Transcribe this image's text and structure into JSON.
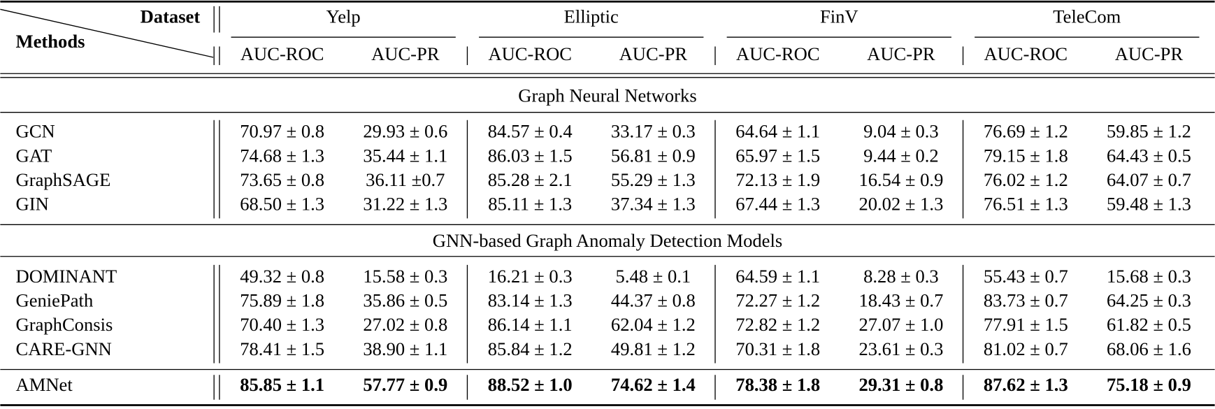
{
  "header": {
    "corner_dataset": "Dataset",
    "corner_methods": "Methods",
    "datasets": [
      "Yelp",
      "Elliptic",
      "FinV",
      "TeleCom"
    ],
    "metrics": [
      "AUC-ROC",
      "AUC-PR",
      "AUC-ROC",
      "AUC-PR",
      "AUC-ROC",
      "AUC-PR",
      "AUC-ROC",
      "AUC-PR"
    ]
  },
  "sections": [
    {
      "title": "Graph Neural Networks",
      "rows": [
        {
          "method": "GCN",
          "cells": [
            "70.97 ± 0.8",
            "29.93 ± 0.6",
            "84.57 ± 0.4",
            "33.17 ± 0.3",
            "64.64 ± 1.1",
            "9.04 ± 0.3",
            "76.69 ± 1.2",
            "59.85 ± 1.2"
          ]
        },
        {
          "method": "GAT",
          "cells": [
            "74.68 ± 1.3",
            "35.44 ± 1.1",
            "86.03 ± 1.5",
            "56.81 ± 0.9",
            "65.97 ± 1.5",
            "9.44 ± 0.2",
            "79.15 ± 1.8",
            "64.43 ± 0.5"
          ]
        },
        {
          "method": "GraphSAGE",
          "cells": [
            "73.65 ± 0.8",
            "36.11 ±0.7",
            "85.28 ± 2.1",
            "55.29 ± 1.3",
            "72.13 ± 1.9",
            "16.54 ± 0.9",
            "76.02 ± 1.2",
            "64.07 ± 0.7"
          ]
        },
        {
          "method": "GIN",
          "cells": [
            "68.50 ± 1.3",
            "31.22 ± 1.3",
            "85.11 ± 1.3",
            "37.34 ± 1.3",
            "67.44 ± 1.3",
            "20.02 ± 1.3",
            "76.51 ± 1.3",
            "59.48 ± 1.3"
          ]
        }
      ]
    },
    {
      "title": "GNN-based Graph Anomaly Detection Models",
      "rows": [
        {
          "method": "DOMINANT",
          "cells": [
            "49.32 ± 0.8",
            "15.58 ± 0.3",
            "16.21 ± 0.3",
            "5.48 ± 0.1",
            "64.59 ± 1.1",
            "8.28 ± 0.3",
            "55.43 ± 0.7",
            "15.68 ± 0.3"
          ]
        },
        {
          "method": "GeniePath",
          "cells": [
            "75.89 ± 1.8",
            "35.86 ± 0.5",
            "83.14 ± 1.3",
            "44.37 ± 0.8",
            "72.27 ± 1.2",
            "18.43 ± 0.7",
            "83.73 ± 0.7",
            "64.25 ± 0.3"
          ]
        },
        {
          "method": "GraphConsis",
          "cells": [
            "70.40 ± 1.3",
            "27.02 ± 0.8",
            "86.14 ± 1.1",
            "62.04 ± 1.2",
            "72.82 ± 1.2",
            "27.07 ± 1.0",
            "77.91 ± 1.5",
            "61.82 ± 0.5"
          ]
        },
        {
          "method": "CARE-GNN",
          "cells": [
            "78.41 ± 1.5",
            "38.90 ± 1.1",
            "85.84 ± 1.2",
            "49.81 ± 1.2",
            "70.31 ± 1.8",
            "23.61 ± 0.3",
            "81.02 ± 0.7",
            "68.06 ± 1.6"
          ]
        }
      ]
    }
  ],
  "final": {
    "method": "AMNet",
    "cells": [
      "85.85 ± 1.1",
      "57.77 ± 0.9",
      "88.52 ± 1.0",
      "74.62 ± 1.4",
      "78.38 ± 1.8",
      "29.31 ± 0.8",
      "87.62 ± 1.3",
      "75.18 ± 0.9"
    ]
  }
}
